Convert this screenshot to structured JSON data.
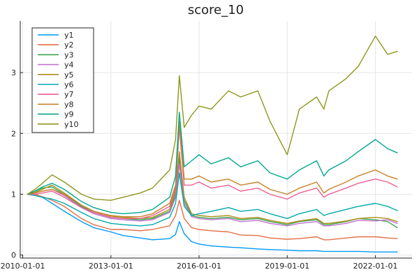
{
  "chart_data": {
    "type": "line",
    "title": "score_10",
    "xlabel": "",
    "ylabel": "",
    "grid": true,
    "legend_position": "top-left",
    "x_ticks": [
      "2010-01-01",
      "2013-01-01",
      "2016-01-01",
      "2019-01-01",
      "2022-01-01"
    ],
    "y_ticks": [
      0,
      1,
      2,
      3
    ],
    "xlim": [
      "2009-12-01",
      "2023-04-01"
    ],
    "ylim": [
      -0.05,
      3.85
    ],
    "series": [
      {
        "name": "y1",
        "color": "#009af9",
        "x": [
          "2010-03-01",
          "2010-06-01",
          "2010-09-01",
          "2011-01-01",
          "2011-06-01",
          "2012-01-01",
          "2012-06-01",
          "2013-01-01",
          "2013-06-01",
          "2014-01-01",
          "2014-06-01",
          "2015-01-01",
          "2015-03-15",
          "2015-05-01",
          "2015-07-01",
          "2015-10-01",
          "2016-01-01",
          "2016-06-01",
          "2017-01-01",
          "2017-06-01",
          "2018-01-01",
          "2018-06-01",
          "2019-01-01",
          "2019-06-01",
          "2020-01-01",
          "2020-04-01",
          "2020-06-01",
          "2021-01-01",
          "2021-06-01",
          "2022-01-01",
          "2022-06-01",
          "2022-10-01"
        ],
        "y": [
          1.0,
          0.98,
          0.95,
          0.85,
          0.72,
          0.55,
          0.45,
          0.38,
          0.32,
          0.28,
          0.25,
          0.27,
          0.34,
          0.55,
          0.35,
          0.22,
          0.18,
          0.15,
          0.13,
          0.12,
          0.1,
          0.09,
          0.08,
          0.07,
          0.07,
          0.06,
          0.06,
          0.06,
          0.06,
          0.05,
          0.05,
          0.05
        ]
      },
      {
        "name": "y2",
        "color": "#e26f46",
        "x": [
          "2010-03-01",
          "2010-06-01",
          "2010-09-01",
          "2011-01-01",
          "2011-06-01",
          "2012-01-01",
          "2012-06-01",
          "2013-01-01",
          "2013-06-01",
          "2014-01-01",
          "2014-06-01",
          "2015-01-01",
          "2015-03-15",
          "2015-05-01",
          "2015-07-01",
          "2015-10-01",
          "2016-01-01",
          "2016-06-01",
          "2017-01-01",
          "2017-06-01",
          "2018-01-01",
          "2018-06-01",
          "2019-01-01",
          "2019-06-01",
          "2020-01-01",
          "2020-04-01",
          "2020-06-01",
          "2021-01-01",
          "2021-06-01",
          "2022-01-01",
          "2022-06-01",
          "2022-10-01"
        ],
        "y": [
          1.0,
          1.0,
          0.96,
          0.9,
          0.8,
          0.6,
          0.5,
          0.42,
          0.42,
          0.4,
          0.42,
          0.48,
          0.65,
          0.9,
          0.6,
          0.45,
          0.42,
          0.4,
          0.38,
          0.33,
          0.32,
          0.28,
          0.26,
          0.27,
          0.3,
          0.25,
          0.25,
          0.28,
          0.3,
          0.3,
          0.28,
          0.27
        ]
      },
      {
        "name": "y3",
        "color": "#3da44d",
        "x": [
          "2010-03-01",
          "2010-06-01",
          "2010-09-01",
          "2011-01-01",
          "2011-06-01",
          "2012-01-01",
          "2012-06-01",
          "2013-01-01",
          "2013-06-01",
          "2014-01-01",
          "2014-06-01",
          "2015-01-01",
          "2015-03-15",
          "2015-05-01",
          "2015-07-01",
          "2015-10-01",
          "2016-01-01",
          "2016-06-01",
          "2017-01-01",
          "2017-06-01",
          "2018-01-01",
          "2018-06-01",
          "2019-01-01",
          "2019-06-01",
          "2020-01-01",
          "2020-04-01",
          "2020-06-01",
          "2021-01-01",
          "2021-06-01",
          "2022-01-01",
          "2022-06-01",
          "2022-10-01"
        ],
        "y": [
          1.0,
          1.05,
          1.1,
          1.12,
          1.0,
          0.8,
          0.7,
          0.62,
          0.6,
          0.58,
          0.6,
          0.72,
          1.0,
          1.6,
          0.9,
          0.65,
          0.62,
          0.6,
          0.62,
          0.58,
          0.6,
          0.55,
          0.5,
          0.55,
          0.58,
          0.5,
          0.5,
          0.55,
          0.6,
          0.58,
          0.55,
          0.45
        ]
      },
      {
        "name": "y4",
        "color": "#c271d2",
        "x": [
          "2010-03-01",
          "2010-06-01",
          "2010-09-01",
          "2011-01-01",
          "2011-06-01",
          "2012-01-01",
          "2012-06-01",
          "2013-01-01",
          "2013-06-01",
          "2014-01-01",
          "2014-06-01",
          "2015-01-01",
          "2015-03-15",
          "2015-05-01",
          "2015-07-01",
          "2015-10-01",
          "2016-01-01",
          "2016-06-01",
          "2017-01-01",
          "2017-06-01",
          "2018-01-01",
          "2018-06-01",
          "2019-01-01",
          "2019-06-01",
          "2020-01-01",
          "2020-04-01",
          "2020-06-01",
          "2021-01-01",
          "2021-06-01",
          "2022-01-01",
          "2022-06-01",
          "2022-10-01"
        ],
        "y": [
          1.0,
          1.02,
          1.05,
          1.08,
          0.98,
          0.78,
          0.68,
          0.6,
          0.58,
          0.56,
          0.58,
          0.7,
          0.95,
          1.5,
          0.85,
          0.63,
          0.6,
          0.58,
          0.6,
          0.55,
          0.57,
          0.52,
          0.48,
          0.52,
          0.55,
          0.48,
          0.48,
          0.52,
          0.57,
          0.56,
          0.58,
          0.52
        ]
      },
      {
        "name": "y5",
        "color": "#ac8d18",
        "x": [
          "2010-03-01",
          "2010-06-01",
          "2010-09-01",
          "2011-01-01",
          "2011-06-01",
          "2012-01-01",
          "2012-06-01",
          "2013-01-01",
          "2013-06-01",
          "2014-01-01",
          "2014-06-01",
          "2015-01-01",
          "2015-03-15",
          "2015-05-01",
          "2015-07-01",
          "2015-10-01",
          "2016-01-01",
          "2016-06-01",
          "2017-01-01",
          "2017-06-01",
          "2018-01-01",
          "2018-06-01",
          "2019-01-01",
          "2019-06-01",
          "2020-01-01",
          "2020-04-01",
          "2020-06-01",
          "2021-01-01",
          "2021-06-01",
          "2022-01-01",
          "2022-06-01",
          "2022-10-01"
        ],
        "y": [
          1.0,
          1.03,
          1.08,
          1.15,
          1.02,
          0.82,
          0.72,
          0.64,
          0.62,
          0.6,
          0.62,
          0.75,
          1.05,
          1.7,
          0.95,
          0.68,
          0.65,
          0.63,
          0.65,
          0.6,
          0.62,
          0.57,
          0.52,
          0.56,
          0.6,
          0.52,
          0.52,
          0.56,
          0.6,
          0.62,
          0.6,
          0.55
        ]
      },
      {
        "name": "y6",
        "color": "#00a9ad",
        "x": [
          "2010-03-01",
          "2010-06-01",
          "2010-09-01",
          "2011-01-01",
          "2011-06-01",
          "2012-01-01",
          "2012-06-01",
          "2013-01-01",
          "2013-06-01",
          "2014-01-01",
          "2014-06-01",
          "2015-01-01",
          "2015-03-15",
          "2015-05-01",
          "2015-07-01",
          "2015-10-01",
          "2016-01-01",
          "2016-06-01",
          "2017-01-01",
          "2017-06-01",
          "2018-01-01",
          "2018-06-01",
          "2019-01-01",
          "2019-06-01",
          "2020-01-01",
          "2020-04-01",
          "2020-06-01",
          "2021-01-01",
          "2021-06-01",
          "2022-01-01",
          "2022-06-01",
          "2022-10-01"
        ],
        "y": [
          1.0,
          0.98,
          0.95,
          0.92,
          0.85,
          0.7,
          0.6,
          0.52,
          0.5,
          0.48,
          0.5,
          0.62,
          0.85,
          1.35,
          0.8,
          0.65,
          0.68,
          0.72,
          0.78,
          0.72,
          0.75,
          0.68,
          0.6,
          0.68,
          0.75,
          0.65,
          0.68,
          0.75,
          0.8,
          0.85,
          0.8,
          0.73
        ]
      },
      {
        "name": "y7",
        "color": "#ed5e93",
        "x": [
          "2010-03-01",
          "2010-06-01",
          "2010-09-01",
          "2011-01-01",
          "2011-06-01",
          "2012-01-01",
          "2012-06-01",
          "2013-01-01",
          "2013-06-01",
          "2014-01-01",
          "2014-06-01",
          "2015-01-01",
          "2015-03-15",
          "2015-05-01",
          "2015-07-01",
          "2015-10-01",
          "2016-01-01",
          "2016-06-01",
          "2017-01-01",
          "2017-06-01",
          "2018-01-01",
          "2018-06-01",
          "2019-01-01",
          "2019-06-01",
          "2020-01-01",
          "2020-04-01",
          "2020-06-01",
          "2021-01-01",
          "2021-06-01",
          "2022-01-01",
          "2022-06-01",
          "2022-10-01"
        ],
        "y": [
          1.0,
          1.0,
          1.02,
          1.05,
          0.95,
          0.78,
          0.7,
          0.62,
          0.6,
          0.6,
          0.65,
          0.8,
          1.1,
          2.1,
          1.15,
          1.15,
          1.2,
          1.1,
          1.15,
          1.05,
          1.1,
          1.0,
          0.92,
          1.02,
          1.1,
          0.95,
          1.0,
          1.1,
          1.18,
          1.25,
          1.2,
          1.12
        ]
      },
      {
        "name": "y8",
        "color": "#c68225",
        "x": [
          "2010-03-01",
          "2010-06-01",
          "2010-09-01",
          "2011-01-01",
          "2011-06-01",
          "2012-01-01",
          "2012-06-01",
          "2013-01-01",
          "2013-06-01",
          "2014-01-01",
          "2014-06-01",
          "2015-01-01",
          "2015-03-15",
          "2015-05-01",
          "2015-07-01",
          "2015-10-01",
          "2016-01-01",
          "2016-06-01",
          "2017-01-01",
          "2017-06-01",
          "2018-01-01",
          "2018-06-01",
          "2019-01-01",
          "2019-06-01",
          "2020-01-01",
          "2020-04-01",
          "2020-06-01",
          "2021-01-01",
          "2021-06-01",
          "2022-01-01",
          "2022-06-01",
          "2022-10-01"
        ],
        "y": [
          1.0,
          1.02,
          1.05,
          1.08,
          1.0,
          0.82,
          0.72,
          0.65,
          0.63,
          0.63,
          0.68,
          0.85,
          1.15,
          2.2,
          1.25,
          1.25,
          1.3,
          1.2,
          1.25,
          1.15,
          1.2,
          1.08,
          1.0,
          1.1,
          1.2,
          1.02,
          1.08,
          1.2,
          1.3,
          1.4,
          1.3,
          1.25
        ]
      },
      {
        "name": "y9",
        "color": "#00a98d",
        "x": [
          "2010-03-01",
          "2010-06-01",
          "2010-09-01",
          "2011-01-01",
          "2011-06-01",
          "2012-01-01",
          "2012-06-01",
          "2013-01-01",
          "2013-06-01",
          "2014-01-01",
          "2014-06-01",
          "2015-01-01",
          "2015-03-15",
          "2015-05-01",
          "2015-07-01",
          "2015-10-01",
          "2016-01-01",
          "2016-06-01",
          "2017-01-01",
          "2017-06-01",
          "2018-01-01",
          "2018-06-01",
          "2019-01-01",
          "2019-06-01",
          "2020-01-01",
          "2020-04-01",
          "2020-06-01",
          "2021-01-01",
          "2021-06-01",
          "2022-01-01",
          "2022-06-01",
          "2022-10-01"
        ],
        "y": [
          1.0,
          1.05,
          1.12,
          1.18,
          1.08,
          0.88,
          0.78,
          0.7,
          0.68,
          0.7,
          0.75,
          0.95,
          1.3,
          2.35,
          1.45,
          1.55,
          1.65,
          1.5,
          1.6,
          1.45,
          1.55,
          1.35,
          1.25,
          1.4,
          1.55,
          1.3,
          1.4,
          1.55,
          1.7,
          1.9,
          1.75,
          1.68
        ]
      },
      {
        "name": "y10",
        "color": "#8e971d",
        "x": [
          "2010-03-01",
          "2010-06-01",
          "2010-09-01",
          "2011-01-01",
          "2011-06-01",
          "2012-01-01",
          "2012-06-01",
          "2013-01-01",
          "2013-06-01",
          "2014-01-01",
          "2014-06-01",
          "2015-01-01",
          "2015-03-15",
          "2015-05-01",
          "2015-07-01",
          "2015-10-01",
          "2016-01-01",
          "2016-06-01",
          "2017-01-01",
          "2017-06-01",
          "2018-01-01",
          "2018-06-01",
          "2019-01-01",
          "2019-06-01",
          "2020-01-01",
          "2020-04-01",
          "2020-06-01",
          "2021-01-01",
          "2021-06-01",
          "2022-01-01",
          "2022-06-01",
          "2022-10-01"
        ],
        "y": [
          1.0,
          1.08,
          1.18,
          1.32,
          1.2,
          1.0,
          0.92,
          0.9,
          0.95,
          1.02,
          1.1,
          1.4,
          1.9,
          2.95,
          2.1,
          2.3,
          2.45,
          2.4,
          2.7,
          2.6,
          2.7,
          2.2,
          1.65,
          2.4,
          2.6,
          2.4,
          2.7,
          2.9,
          3.1,
          3.6,
          3.3,
          3.35
        ]
      }
    ]
  }
}
